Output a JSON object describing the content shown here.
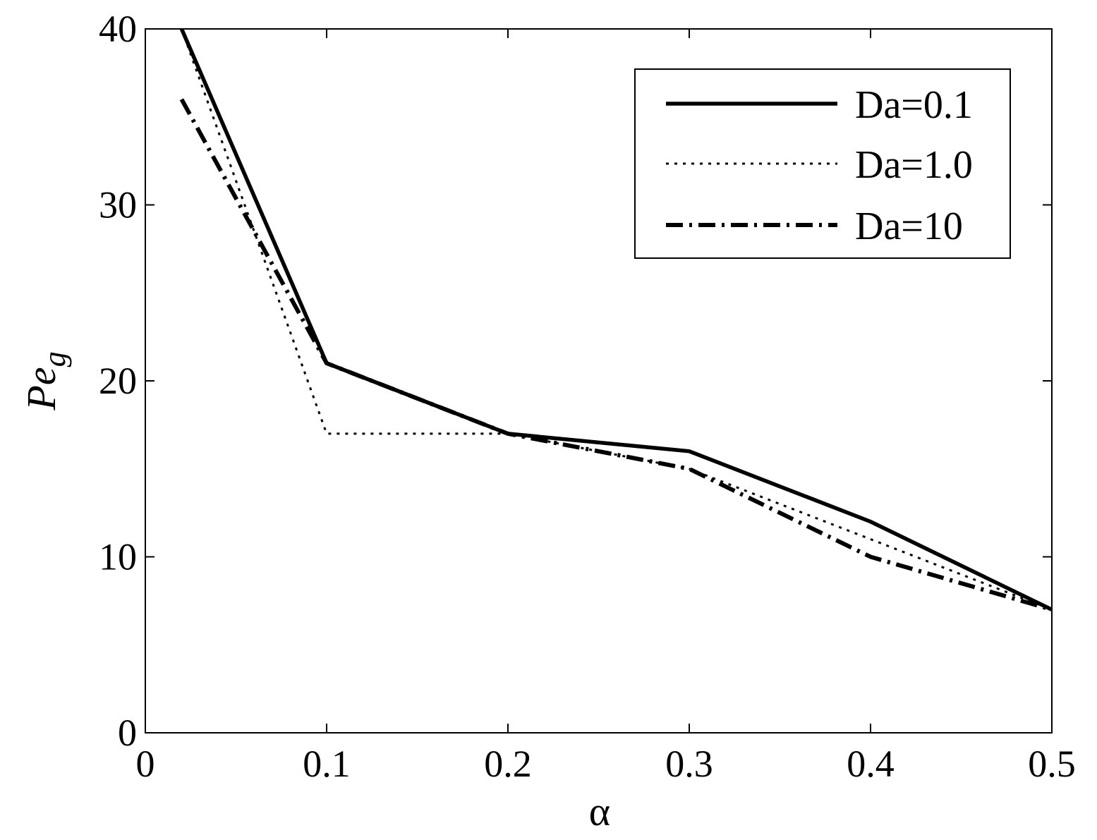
{
  "chart_data": {
    "type": "line",
    "xlabel": "α",
    "ylabel_base": "Pe",
    "ylabel_sub": "g",
    "xlim": [
      0,
      0.5
    ],
    "ylim": [
      0,
      40
    ],
    "xticks": [
      "0",
      "0.1",
      "0.2",
      "0.3",
      "0.4",
      "0.5"
    ],
    "yticks": [
      "0",
      "10",
      "20",
      "30",
      "40"
    ],
    "grid": false,
    "legend_position": "top-right",
    "series": [
      {
        "name": "Da=0.1",
        "style": "solid",
        "x": [
          0.02,
          0.1,
          0.2,
          0.3,
          0.4,
          0.5
        ],
        "y": [
          40.0,
          21.0,
          17.0,
          16.0,
          12.0,
          7.0
        ]
      },
      {
        "name": "Da=1.0",
        "style": "dotted",
        "x": [
          0.02,
          0.1,
          0.2,
          0.3,
          0.4,
          0.5
        ],
        "y": [
          40.0,
          17.0,
          17.0,
          15.0,
          11.0,
          7.0
        ]
      },
      {
        "name": "Da=10",
        "style": "dashdot",
        "x": [
          0.02,
          0.1,
          0.2,
          0.3,
          0.4,
          0.5
        ],
        "y": [
          36.0,
          21.0,
          17.0,
          15.0,
          10.0,
          7.0
        ]
      }
    ]
  }
}
